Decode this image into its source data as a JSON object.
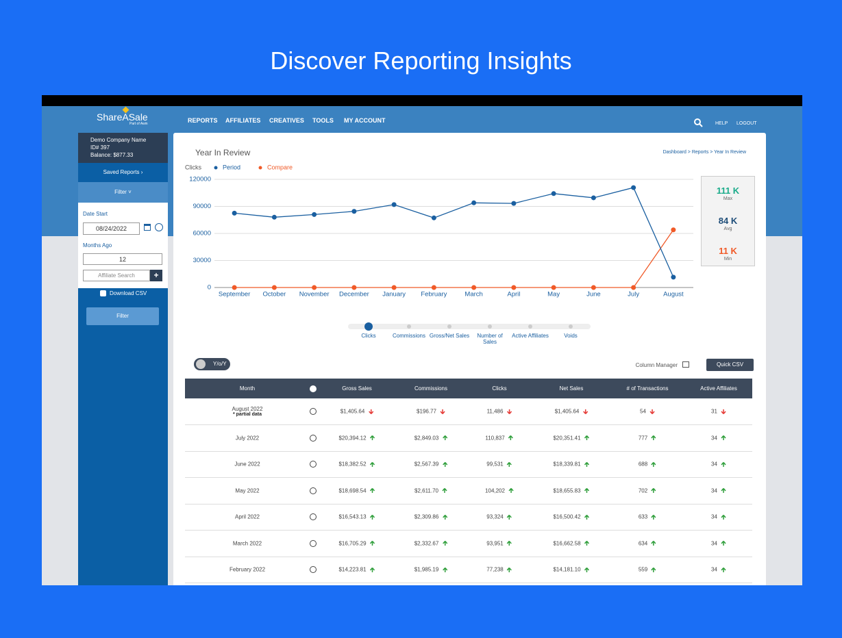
{
  "header": {
    "title": "Discover Reporting Insights"
  },
  "nav": {
    "logo": "ShareASale",
    "logo_tagline": "Part of Awin",
    "items": [
      "REPORTS",
      "AFFILIATES",
      "CREATIVES",
      "TOOLS",
      "MY ACCOUNT"
    ],
    "help": "HELP",
    "logout": "LOGOUT"
  },
  "sidebar": {
    "company": "Demo Company Name",
    "id": "ID# 397",
    "balance": "Balance: $877.33",
    "saved_reports": "Saved Reports",
    "filter_toggle": "Filter",
    "date_start_label": "Date Start",
    "date_start": "08/24/2022",
    "months_ago_label": "Months Ago",
    "months_ago": "12",
    "affiliate_search": "Affiliate Search",
    "download_csv": "Download CSV",
    "filter_button": "Filter"
  },
  "report": {
    "title": "Year In Review",
    "breadcrumb": "Dashboard > Reports > Year In Review",
    "stats": [
      {
        "value": "111 K",
        "label": "Max",
        "color": "#1aab8a"
      },
      {
        "value": "84 K",
        "label": "Avg",
        "color": "#1f4e79"
      },
      {
        "value": "11 K",
        "label": "Min",
        "color": "#f05a28"
      }
    ],
    "metrics": [
      "Clicks",
      "Commissions",
      "Gross/Net Sales",
      "Number of Sales",
      "Active Affiliates",
      "Voids"
    ],
    "active_metric": 0,
    "yoy": "Y/o/Y",
    "column_manager": "Column Manager",
    "quick_csv": "Quick CSV"
  },
  "chart_data": {
    "type": "line",
    "ylabel": "Clicks",
    "categories": [
      "September",
      "October",
      "November",
      "December",
      "January",
      "February",
      "March",
      "April",
      "May",
      "June",
      "July",
      "August"
    ],
    "series": [
      {
        "name": "Period",
        "color": "#1a5fa0",
        "values": [
          82500,
          78000,
          81000,
          84500,
          92000,
          77238,
          93951,
          93324,
          104202,
          99531,
          110837,
          11486
        ]
      },
      {
        "name": "Compare",
        "color": "#f05a28",
        "values": [
          0,
          0,
          0,
          0,
          0,
          0,
          0,
          0,
          0,
          0,
          0,
          64000
        ]
      }
    ],
    "ylim": [
      0,
      120000
    ],
    "yticks": [
      0,
      30000,
      60000,
      90000,
      120000
    ],
    "grid": true
  },
  "table": {
    "columns": [
      "Month",
      "Gross Sales",
      "Commissions",
      "Clicks",
      "Net Sales",
      "# of Transactions",
      "Active Affiliates"
    ],
    "rows": [
      {
        "month": "August 2022",
        "note": "* partial data",
        "cells": [
          "$1,405.64",
          "$196.77",
          "11,486",
          "$1,405.64",
          "54",
          "31"
        ],
        "trend": "down"
      },
      {
        "month": "July 2022",
        "cells": [
          "$20,394.12",
          "$2,849.03",
          "110,837",
          "$20,351.41",
          "777",
          "34"
        ],
        "trend": "up"
      },
      {
        "month": "June 2022",
        "cells": [
          "$18,382.52",
          "$2,567.39",
          "99,531",
          "$18,339.81",
          "688",
          "34"
        ],
        "trend": "up"
      },
      {
        "month": "May 2022",
        "cells": [
          "$18,698.54",
          "$2,611.70",
          "104,202",
          "$18,655.83",
          "702",
          "34"
        ],
        "trend": "up"
      },
      {
        "month": "April 2022",
        "cells": [
          "$16,543.13",
          "$2,309.86",
          "93,324",
          "$16,500.42",
          "633",
          "34"
        ],
        "trend": "up"
      },
      {
        "month": "March 2022",
        "cells": [
          "$16,705.29",
          "$2,332.67",
          "93,951",
          "$16,662.58",
          "634",
          "34"
        ],
        "trend": "up"
      },
      {
        "month": "February 2022",
        "cells": [
          "$14,223.81",
          "$1,985.19",
          "77,238",
          "$14,181.10",
          "559",
          "34"
        ],
        "trend": "up"
      }
    ]
  }
}
